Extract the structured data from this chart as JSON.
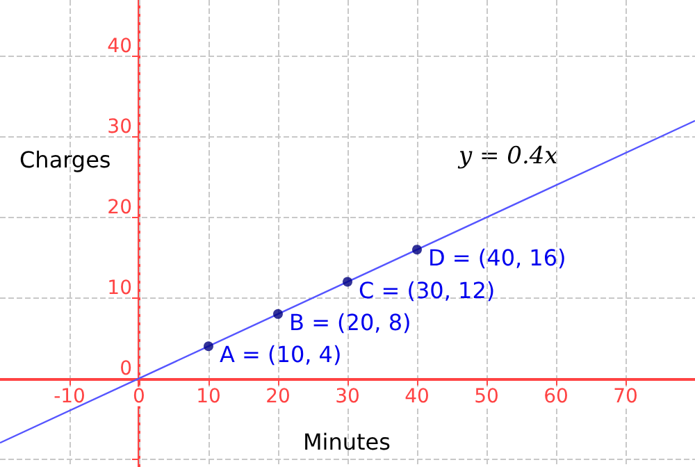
{
  "chart_data": {
    "type": "line",
    "xlabel": "Minutes",
    "ylabel": "Charges",
    "series": [
      {
        "color": "#5555ff",
        "x": [
          -20,
          80
        ],
        "values": [
          -8,
          32
        ],
        "marker": "none"
      },
      {
        "type": "scatter",
        "color": "#000080",
        "x": [
          10,
          20,
          30,
          40
        ],
        "values": [
          4,
          8,
          12,
          16
        ],
        "marker": "circle"
      }
    ],
    "annotations": [
      {
        "text": "A = (10, 4)",
        "x": 10,
        "y": 4
      },
      {
        "text": "B = (20, 8)",
        "x": 20,
        "y": 8
      },
      {
        "text": "C = (30, 12)",
        "x": 30,
        "y": 12
      },
      {
        "text": "D = (40, 16)",
        "x": 40,
        "y": 16
      },
      "y = 0.4x"
    ],
    "xlim": [
      -20,
      80
    ],
    "ylim": [
      -11,
      47
    ],
    "xticks": [
      -10,
      0,
      10,
      20,
      30,
      40,
      50,
      60,
      70
    ],
    "yticks": [
      {
        "value": -10,
        "label": null
      },
      0,
      10,
      20,
      30,
      40
    ],
    "grid": true
  }
}
